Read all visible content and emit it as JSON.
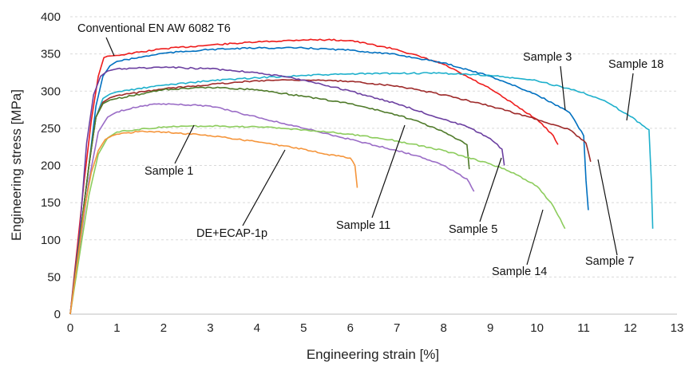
{
  "chart_data": {
    "type": "line",
    "title": "",
    "xlabel": "Engineering strain [%]",
    "ylabel": "Engineering stress [MPa]",
    "xlim": [
      0,
      13
    ],
    "ylim": [
      0,
      400
    ],
    "xticks": [
      "0",
      "1",
      "2",
      "3",
      "4",
      "5",
      "6",
      "7",
      "8",
      "9",
      "10",
      "11",
      "12",
      "13"
    ],
    "yticks": [
      "0",
      "50",
      "100",
      "150",
      "200",
      "250",
      "300",
      "350",
      "400"
    ],
    "grid": true,
    "legend": "none",
    "series": [
      {
        "name": "Conventional EN AW 6082 T6",
        "color": "#ee1c1c",
        "x": [
          0,
          0.15,
          0.3,
          0.45,
          0.6,
          0.72,
          0.8,
          1,
          2,
          3,
          4,
          5,
          5.5,
          6,
          7,
          8,
          9,
          10,
          10.35,
          10.45
        ],
        "y": [
          0,
          90,
          180,
          260,
          320,
          345,
          347,
          348,
          357,
          362,
          366,
          369,
          369,
          368,
          356,
          336,
          303,
          262,
          240,
          228
        ]
      },
      {
        "name": "Sample 3",
        "color": "#0070c0",
        "x": [
          0,
          0.2,
          0.4,
          0.55,
          0.7,
          0.85,
          1,
          2,
          3,
          4,
          5,
          6,
          7,
          8,
          9,
          10,
          10.7,
          11,
          11.05,
          11.1
        ],
        "y": [
          0,
          100,
          200,
          280,
          320,
          334,
          340,
          351,
          356,
          358,
          358,
          355,
          349,
          338,
          320,
          295,
          271,
          240,
          180,
          140
        ]
      },
      {
        "name": "Sample 18",
        "color": "#1eb0cc",
        "x": [
          0,
          0.2,
          0.4,
          0.55,
          0.7,
          0.85,
          1,
          2,
          3,
          4,
          5,
          6,
          7,
          8,
          9,
          10,
          11,
          11.5,
          12,
          12.4,
          12.45,
          12.48
        ],
        "y": [
          0,
          100,
          200,
          265,
          290,
          296,
          299,
          308,
          314,
          318,
          321,
          323,
          324,
          324,
          321,
          314,
          298,
          285,
          266,
          248,
          180,
          115
        ]
      },
      {
        "name": "Sample 7",
        "color": "#9e2a2a",
        "x": [
          0,
          0.2,
          0.4,
          0.55,
          0.7,
          0.85,
          1,
          2,
          3,
          4,
          4.5,
          5,
          6,
          7,
          8,
          9,
          10,
          10.7,
          11.05,
          11.15
        ],
        "y": [
          0,
          100,
          200,
          265,
          285,
          291,
          294,
          303,
          309,
          314,
          315,
          315,
          313,
          307,
          295,
          280,
          262,
          248,
          230,
          205
        ]
      },
      {
        "name": "Sample 5",
        "color": "#6b3fa0",
        "x": [
          0,
          0.2,
          0.35,
          0.5,
          0.65,
          0.8,
          1,
          2,
          3,
          4,
          5,
          6,
          7,
          8,
          8.5,
          9,
          9.25,
          9.3
        ],
        "y": [
          0,
          110,
          230,
          295,
          320,
          327,
          330,
          332,
          330,
          325,
          315,
          300,
          283,
          262,
          252,
          236,
          222,
          200
        ]
      },
      {
        "name": "Sample 11",
        "color": "#4f7a2a",
        "x": [
          0,
          0.2,
          0.4,
          0.55,
          0.7,
          0.85,
          1,
          2,
          3,
          4,
          5,
          6,
          7,
          7.5,
          8,
          8.3,
          8.5,
          8.55
        ],
        "y": [
          0,
          100,
          200,
          265,
          283,
          288,
          290,
          302,
          305,
          302,
          293,
          283,
          268,
          258,
          245,
          235,
          228,
          195
        ]
      },
      {
        "name": "Sample 1",
        "color": "#9a6cc6",
        "x": [
          0,
          0.2,
          0.4,
          0.6,
          0.8,
          1,
          1.5,
          2,
          3,
          4,
          5,
          6,
          7,
          7.5,
          8,
          8.5,
          8.65
        ],
        "y": [
          0,
          90,
          180,
          245,
          265,
          272,
          280,
          283,
          280,
          265,
          250,
          235,
          220,
          212,
          200,
          182,
          165
        ]
      },
      {
        "name": "Sample 14",
        "color": "#8ccc5c",
        "x": [
          0,
          0.2,
          0.4,
          0.6,
          0.8,
          1,
          2,
          3,
          4,
          5,
          6,
          7,
          8,
          9,
          9.5,
          10,
          10.3,
          10.5,
          10.6
        ],
        "y": [
          0,
          80,
          160,
          215,
          237,
          245,
          252,
          253,
          252,
          248,
          242,
          233,
          220,
          202,
          190,
          172,
          150,
          128,
          115
        ]
      },
      {
        "name": "DE+ECAP-1p",
        "color": "#f5953b",
        "x": [
          0,
          0.15,
          0.3,
          0.45,
          0.6,
          0.75,
          0.9,
          1,
          1.5,
          2,
          3,
          4,
          5,
          5.5,
          6,
          6.1,
          6.15
        ],
        "y": [
          0,
          70,
          140,
          190,
          220,
          235,
          240,
          242,
          246,
          245,
          240,
          232,
          222,
          215,
          210,
          200,
          170
        ]
      }
    ],
    "annotations": [
      {
        "text": "Conventional EN AW 6082 T6",
        "series": "Conventional EN AW 6082 T6"
      },
      {
        "text": "Sample 3",
        "series": "Sample 3"
      },
      {
        "text": "Sample 18",
        "series": "Sample 18"
      },
      {
        "text": "Sample 1",
        "series": "Sample 1"
      },
      {
        "text": "DE+ECAP-1p",
        "series": "DE+ECAP-1p"
      },
      {
        "text": "Sample 11",
        "series": "Sample 11"
      },
      {
        "text": "Sample 5",
        "series": "Sample 5"
      },
      {
        "text": "Sample 7",
        "series": "Sample 7"
      },
      {
        "text": "Sample 14",
        "series": "Sample 14"
      }
    ]
  }
}
